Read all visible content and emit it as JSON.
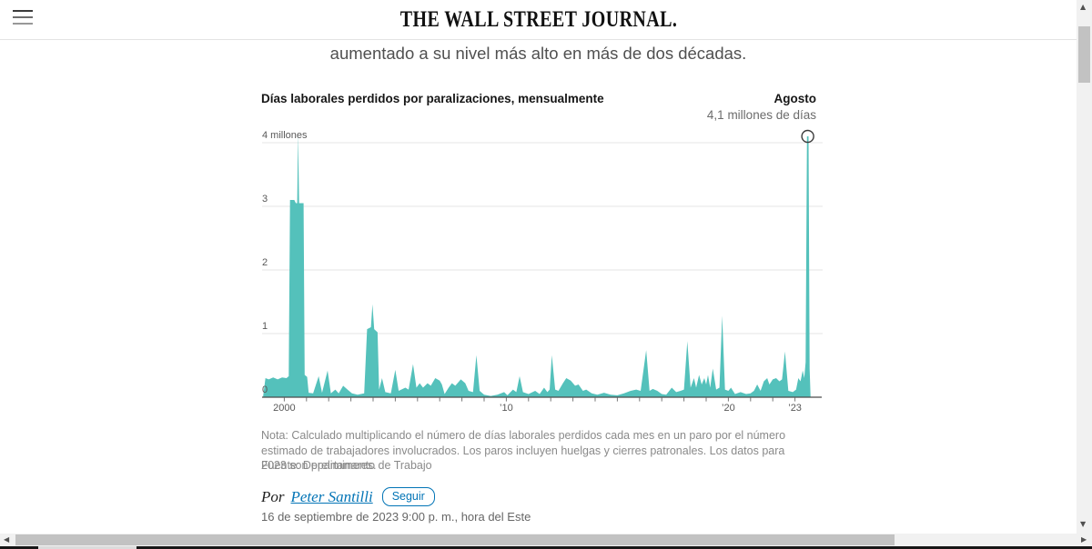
{
  "header": {
    "masthead": "THE WALL STREET JOURNAL."
  },
  "article": {
    "headline_fragment": "aumentado a su nivel más alto en más de dos décadas.",
    "note": "Nota: Calculado multiplicando el número de días laborales perdidos cada mes en un paro por el número estimado de trabajadores involucrados. Los paros incluyen huelgas y cierres patronales. Los datos para 2023 son preliminares.",
    "source": "Fuente: Departamento de Trabajo",
    "byline": {
      "prefix": "Por",
      "author": "Peter Santilli",
      "follow_label": "Seguir"
    },
    "date": "16 de septiembre de 2023 9:00 p. m., hora del Este"
  },
  "chart_data": {
    "type": "area",
    "title": "Días laborales perdidos por paralizaciones, mensualmente",
    "units": "millones de días",
    "series_color": "#54c1bb",
    "grid": true,
    "x_range": [
      1999.0,
      2023.72
    ],
    "y_range": [
      0,
      4.4
    ],
    "annotation": {
      "label": "Agosto",
      "value": "4,1 millones de días",
      "x": 2023.575,
      "y": 4.1
    },
    "y_ticks": [
      {
        "v": 4,
        "label": "4 millones"
      },
      {
        "v": 3,
        "label": "3"
      },
      {
        "v": 2,
        "label": "2"
      },
      {
        "v": 1,
        "label": "1"
      },
      {
        "v": 0,
        "label": "0"
      }
    ],
    "x_labels": [
      {
        "x": 2000,
        "label": "2000"
      },
      {
        "x": 2010,
        "label": "’10"
      },
      {
        "x": 2020,
        "label": "’20"
      },
      {
        "x": 2023,
        "label": "’23"
      }
    ],
    "x_minor_tick_every_years": 1,
    "series": [
      {
        "name": "Días laborales perdidos por paralizaciones (millones, mensual)",
        "points": [
          [
            1999.05,
            0.02
          ],
          [
            1999.15,
            0.3
          ],
          [
            1999.3,
            0.28
          ],
          [
            1999.5,
            0.31
          ],
          [
            1999.7,
            0.28
          ],
          [
            1999.9,
            0.31
          ],
          [
            2000.1,
            0.3
          ],
          [
            2000.2,
            0.33
          ],
          [
            2000.26,
            3.1
          ],
          [
            2000.45,
            3.1
          ],
          [
            2000.52,
            3.05
          ],
          [
            2000.58,
            3.05
          ],
          [
            2000.62,
            4.14
          ],
          [
            2000.67,
            3.05
          ],
          [
            2000.87,
            3.05
          ],
          [
            2000.92,
            0.35
          ],
          [
            2001.03,
            0.32
          ],
          [
            2001.1,
            0.07
          ],
          [
            2001.3,
            0.06
          ],
          [
            2001.55,
            0.33
          ],
          [
            2001.7,
            0.07
          ],
          [
            2001.95,
            0.42
          ],
          [
            2002.1,
            0.06
          ],
          [
            2002.3,
            0.12
          ],
          [
            2002.45,
            0.06
          ],
          [
            2002.65,
            0.18
          ],
          [
            2002.85,
            0.12
          ],
          [
            2003.05,
            0.06
          ],
          [
            2003.3,
            0.04
          ],
          [
            2003.6,
            0.06
          ],
          [
            2003.73,
            1.07
          ],
          [
            2003.9,
            1.1
          ],
          [
            2003.97,
            1.46
          ],
          [
            2004.05,
            1.07
          ],
          [
            2004.2,
            1.02
          ],
          [
            2004.27,
            0.12
          ],
          [
            2004.4,
            0.3
          ],
          [
            2004.55,
            0.08
          ],
          [
            2004.8,
            0.06
          ],
          [
            2005.0,
            0.43
          ],
          [
            2005.15,
            0.1
          ],
          [
            2005.45,
            0.15
          ],
          [
            2005.6,
            0.12
          ],
          [
            2005.8,
            0.52
          ],
          [
            2005.95,
            0.15
          ],
          [
            2006.1,
            0.22
          ],
          [
            2006.25,
            0.15
          ],
          [
            2006.45,
            0.22
          ],
          [
            2006.6,
            0.18
          ],
          [
            2006.8,
            0.3
          ],
          [
            2007.0,
            0.26
          ],
          [
            2007.1,
            0.2
          ],
          [
            2007.22,
            0.05
          ],
          [
            2007.4,
            0.15
          ],
          [
            2007.55,
            0.22
          ],
          [
            2007.7,
            0.18
          ],
          [
            2007.95,
            0.28
          ],
          [
            2008.15,
            0.22
          ],
          [
            2008.3,
            0.1
          ],
          [
            2008.5,
            0.08
          ],
          [
            2008.65,
            0.66
          ],
          [
            2008.8,
            0.1
          ],
          [
            2009.0,
            0.04
          ],
          [
            2009.3,
            0.02
          ],
          [
            2009.6,
            0.04
          ],
          [
            2009.9,
            0.08
          ],
          [
            2010.05,
            0.03
          ],
          [
            2010.3,
            0.12
          ],
          [
            2010.45,
            0.08
          ],
          [
            2010.6,
            0.33
          ],
          [
            2010.75,
            0.08
          ],
          [
            2011.0,
            0.05
          ],
          [
            2011.3,
            0.1
          ],
          [
            2011.5,
            0.05
          ],
          [
            2011.7,
            0.15
          ],
          [
            2011.85,
            0.08
          ],
          [
            2011.95,
            0.12
          ],
          [
            2012.05,
            0.66
          ],
          [
            2012.2,
            0.12
          ],
          [
            2012.35,
            0.1
          ],
          [
            2012.55,
            0.22
          ],
          [
            2012.7,
            0.3
          ],
          [
            2012.9,
            0.26
          ],
          [
            2013.1,
            0.18
          ],
          [
            2013.25,
            0.2
          ],
          [
            2013.45,
            0.1
          ],
          [
            2013.6,
            0.12
          ],
          [
            2013.85,
            0.06
          ],
          [
            2014.1,
            0.04
          ],
          [
            2014.4,
            0.07
          ],
          [
            2014.7,
            0.04
          ],
          [
            2015.0,
            0.03
          ],
          [
            2015.3,
            0.06
          ],
          [
            2015.6,
            0.1
          ],
          [
            2015.85,
            0.12
          ],
          [
            2016.05,
            0.1
          ],
          [
            2016.3,
            0.74
          ],
          [
            2016.45,
            0.1
          ],
          [
            2016.6,
            0.13
          ],
          [
            2016.8,
            0.1
          ],
          [
            2017.0,
            0.05
          ],
          [
            2017.2,
            0.04
          ],
          [
            2017.45,
            0.15
          ],
          [
            2017.65,
            0.08
          ],
          [
            2017.85,
            0.1
          ],
          [
            2018.0,
            0.12
          ],
          [
            2018.15,
            0.88
          ],
          [
            2018.3,
            0.15
          ],
          [
            2018.45,
            0.3
          ],
          [
            2018.55,
            0.15
          ],
          [
            2018.68,
            0.35
          ],
          [
            2018.8,
            0.2
          ],
          [
            2018.92,
            0.3
          ],
          [
            2019.0,
            0.2
          ],
          [
            2019.08,
            0.35
          ],
          [
            2019.18,
            0.15
          ],
          [
            2019.3,
            0.45
          ],
          [
            2019.45,
            0.12
          ],
          [
            2019.6,
            0.15
          ],
          [
            2019.72,
            1.28
          ],
          [
            2019.85,
            0.12
          ],
          [
            2020.0,
            0.1
          ],
          [
            2020.12,
            0.15
          ],
          [
            2020.3,
            0.05
          ],
          [
            2020.55,
            0.08
          ],
          [
            2020.8,
            0.05
          ],
          [
            2021.0,
            0.06
          ],
          [
            2021.15,
            0.1
          ],
          [
            2021.3,
            0.2
          ],
          [
            2021.45,
            0.1
          ],
          [
            2021.6,
            0.25
          ],
          [
            2021.75,
            0.3
          ],
          [
            2021.85,
            0.2
          ],
          [
            2022.0,
            0.28
          ],
          [
            2022.15,
            0.3
          ],
          [
            2022.3,
            0.25
          ],
          [
            2022.42,
            0.28
          ],
          [
            2022.55,
            0.72
          ],
          [
            2022.7,
            0.1
          ],
          [
            2022.9,
            0.08
          ],
          [
            2023.05,
            0.12
          ],
          [
            2023.15,
            0.3
          ],
          [
            2023.25,
            0.25
          ],
          [
            2023.35,
            0.42
          ],
          [
            2023.42,
            0.3
          ],
          [
            2023.48,
            0.55
          ],
          [
            2023.54,
            4.1
          ],
          [
            2023.61,
            4.1
          ],
          [
            2023.66,
            0.45
          ],
          [
            2023.7,
            0.02
          ]
        ]
      }
    ]
  }
}
